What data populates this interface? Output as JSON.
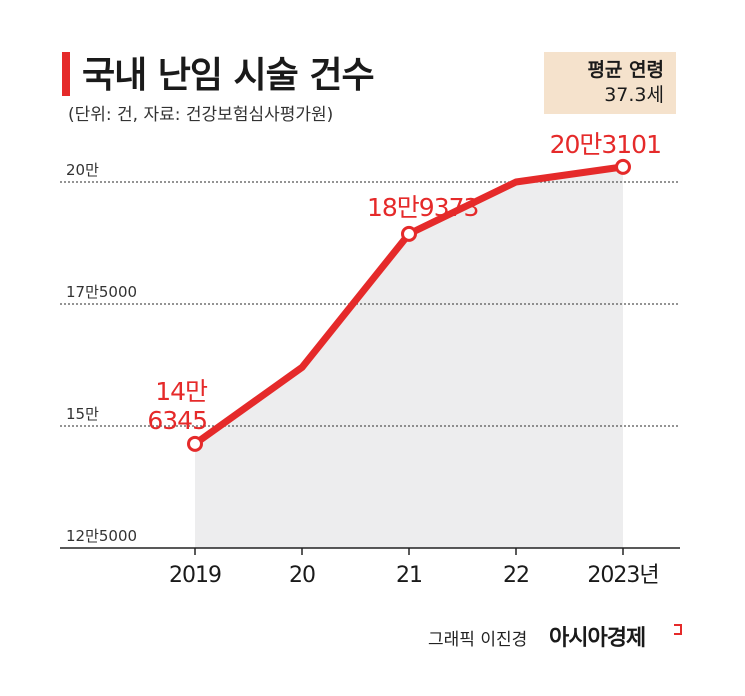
{
  "header": {
    "title": "국내 난임 시술 건수",
    "subtitle": "(단위: 건, 자료: 건강보험심사평가원)"
  },
  "avg_box": {
    "label": "평균 연령",
    "value": "37.3세"
  },
  "footer": {
    "credit": "그래픽 이진경",
    "brand": "아시아경제"
  },
  "colors": {
    "accent": "#e52a2a",
    "area_fill": "#ededee",
    "avg_box_bg": "#f5e2cc"
  },
  "chart_data": {
    "type": "line",
    "x": [
      "2019",
      "20",
      "21",
      "22",
      "2023년"
    ],
    "values": [
      146345,
      162000,
      189373,
      200000,
      203101
    ],
    "ylim": [
      125000,
      200000
    ],
    "yticks": [
      {
        "value": 200000,
        "label": "20만"
      },
      {
        "value": 175000,
        "label": "17만5000"
      },
      {
        "value": 150000,
        "label": "15만"
      },
      {
        "value": 125000,
        "label": "12만5000"
      }
    ],
    "annotations": [
      {
        "index": 0,
        "lines": [
          "14만",
          "6345"
        ]
      },
      {
        "index": 2,
        "lines": [
          "18만9373"
        ]
      },
      {
        "index": 4,
        "lines": [
          "20만3101"
        ]
      }
    ],
    "grid": true,
    "area_fill": true
  }
}
